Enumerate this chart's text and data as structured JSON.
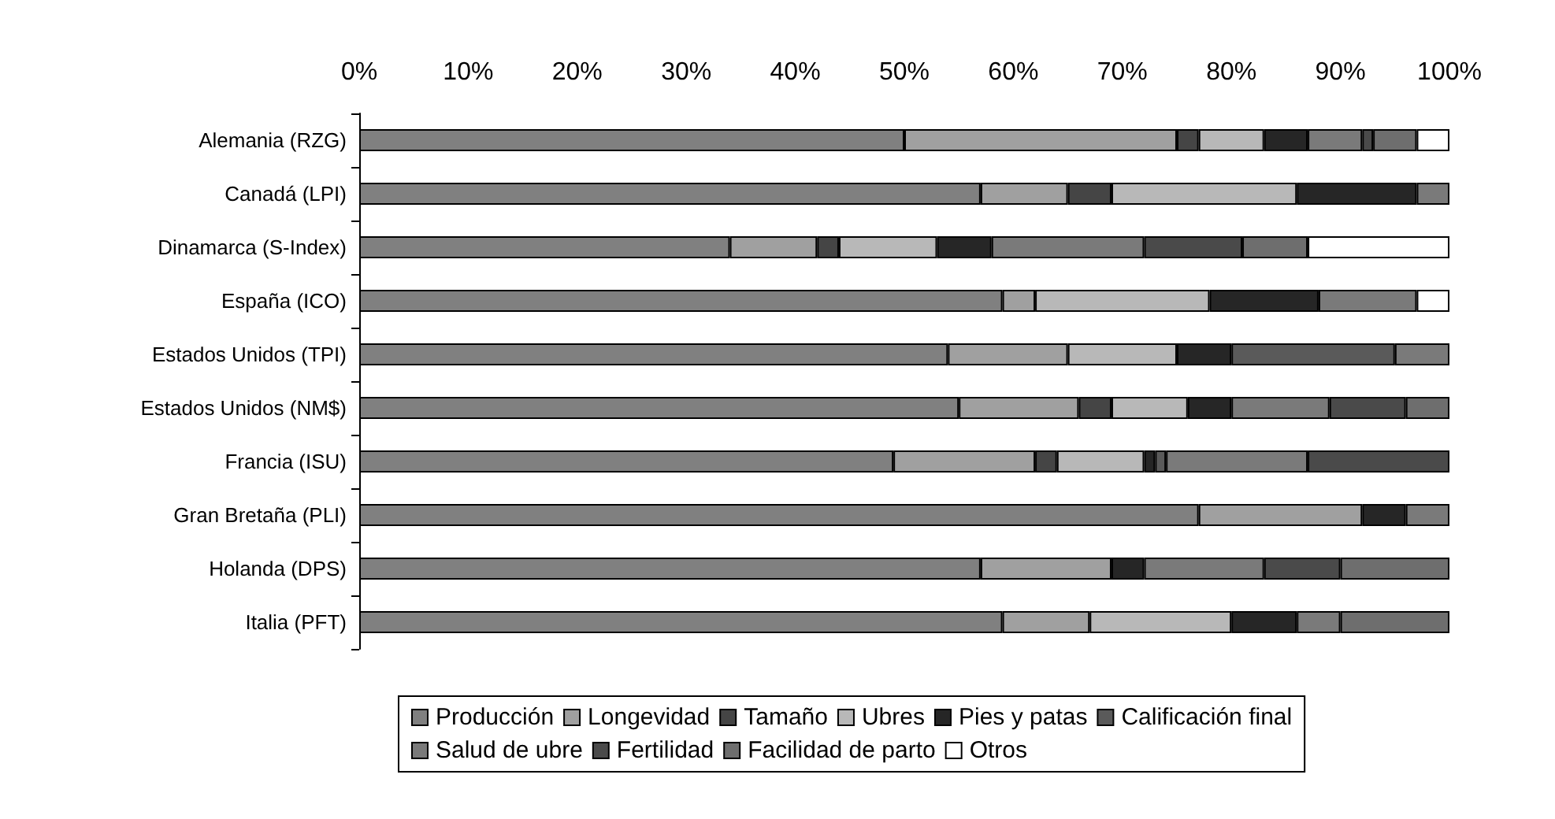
{
  "chart_data": {
    "type": "bar",
    "orientation": "horizontal",
    "stacked": true,
    "legend": "bottom",
    "grid": false,
    "categories": [
      "Alemania (RZG)",
      "Canadá (LPI)",
      "Dinamarca (S-Index)",
      "España (ICO)",
      "Estados Unidos (TPI)",
      "Estados Unidos (NM$)",
      "Francia (ISU)",
      "Gran Bretaña (PLI)",
      "Holanda (DPS)",
      "Italia (PFT)"
    ],
    "xlim": [
      0,
      100
    ],
    "xticks": [
      {
        "value": 0,
        "label": "0%"
      },
      {
        "value": 10,
        "label": "10%"
      },
      {
        "value": 20,
        "label": "20%"
      },
      {
        "value": 30,
        "label": "30%"
      },
      {
        "value": 40,
        "label": "40%"
      },
      {
        "value": 50,
        "label": "50%"
      },
      {
        "value": 60,
        "label": "60%"
      },
      {
        "value": 70,
        "label": "70%"
      },
      {
        "value": 80,
        "label": "80%"
      },
      {
        "value": 90,
        "label": "90%"
      },
      {
        "value": 100,
        "label": "100%"
      }
    ],
    "series": [
      {
        "name": "Producción",
        "color": "#808080",
        "values": [
          50,
          57,
          34,
          59,
          54,
          55,
          49,
          77,
          57,
          59
        ]
      },
      {
        "name": "Longevidad",
        "color": "#a0a0a0",
        "values": [
          25,
          8,
          8,
          3,
          11,
          11,
          13,
          15,
          12,
          8
        ]
      },
      {
        "name": "Tamaño",
        "color": "#454545",
        "values": [
          2,
          4,
          2,
          0,
          0,
          3,
          2,
          0,
          0,
          0
        ]
      },
      {
        "name": "Ubres",
        "color": "#b8b8b8",
        "values": [
          6,
          17,
          9,
          16,
          10,
          7,
          8,
          0,
          0,
          13
        ]
      },
      {
        "name": "Pies y patas",
        "color": "#262626",
        "values": [
          4,
          11,
          5,
          10,
          5,
          4,
          1,
          4,
          3,
          6
        ]
      },
      {
        "name": "Calificación final",
        "color": "#5a5a5a",
        "values": [
          0,
          0,
          0,
          0,
          15,
          0,
          1,
          0,
          0,
          0
        ]
      },
      {
        "name": "Salud de ubre",
        "color": "#7a7a7a",
        "values": [
          5,
          3,
          14,
          9,
          5,
          9,
          13,
          4,
          11,
          4
        ]
      },
      {
        "name": "Fertilidad",
        "color": "#4a4a4a",
        "values": [
          1,
          0,
          9,
          0,
          0,
          7,
          13,
          0,
          7,
          0
        ]
      },
      {
        "name": "Facilidad de parto",
        "color": "#6e6e6e",
        "values": [
          4,
          0,
          6,
          0,
          0,
          4,
          0,
          0,
          10,
          10
        ]
      },
      {
        "name": "Otros",
        "color": "#ffffff",
        "values": [
          3,
          0,
          13,
          3,
          0,
          0,
          0,
          0,
          0,
          0
        ]
      }
    ]
  }
}
